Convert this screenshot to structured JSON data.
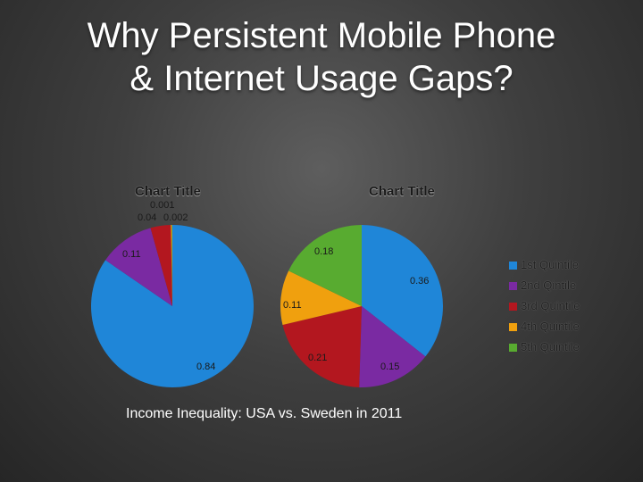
{
  "slide": {
    "title_line1": "Why Persistent Mobile Phone",
    "title_line2": "& Internet Usage Gaps?",
    "caption": "Income Inequality: USA vs. Sweden in 2011"
  },
  "colors": {
    "1st Quintile": "#1f86d8",
    "2nd Qintile": "#7a2aa2",
    "3rd Quintile": "#b3171f",
    "4th Quintile": "#f0a00e",
    "5th Quintile": "#58ab30"
  },
  "chart_data": [
    {
      "type": "pie",
      "title": "Chart Title",
      "categories": [
        "1st Quintile",
        "2nd Qintile",
        "3rd Quintile",
        "4th Quintile",
        "5th Quintile"
      ],
      "values": [
        0.84,
        0.11,
        0.04,
        0.002,
        0.001
      ],
      "value_labels": [
        "0.84",
        "0.11",
        "0.04",
        "0.002",
        "0.001"
      ]
    },
    {
      "type": "pie",
      "title": "Chart Title",
      "categories": [
        "1st Quintile",
        "2nd Qintile",
        "3rd Quintile",
        "4th Quintile",
        "5th Quintile"
      ],
      "values": [
        0.36,
        0.15,
        0.21,
        0.11,
        0.18
      ],
      "value_labels": [
        "0.36",
        "0.15",
        "0.21",
        "0.11",
        "0.18"
      ],
      "legend": {
        "position": "right",
        "entries": [
          "1st Quintile",
          "2nd Qintile",
          "3rd Quintile",
          "4th Quintile",
          "5th Quintile"
        ]
      }
    }
  ]
}
